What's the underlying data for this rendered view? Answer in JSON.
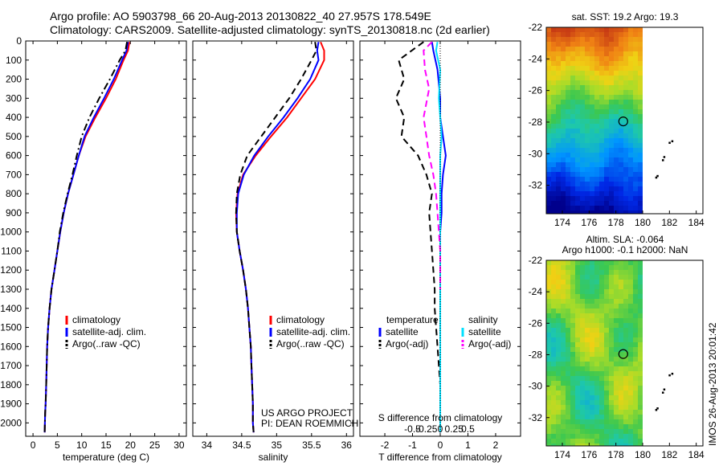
{
  "header": {
    "line1": "Argo profile: AO 5903798_66 20-Aug-2013 20130822_40 27.957S 178.549E",
    "line2": "Climatology: CARS2009. Satellite-adjusted climatology: synTS_20130818.nc (2d earlier)"
  },
  "colors": {
    "climatology": "#ff0000",
    "satellite": "#0000ff",
    "argo": "#000000",
    "salinity_satellite": "#00e0ff",
    "salinity_argo": "#ff00ff"
  },
  "stamp": "IMOS 26-Aug-2013 20:01:42",
  "chart_data": [
    {
      "id": "temperature",
      "type": "line",
      "xlabel": "temperature (deg C)",
      "ylabel": "",
      "xlim": [
        -1.5,
        31.5
      ],
      "ylim": [
        2070,
        0
      ],
      "xticks": [
        0,
        5,
        10,
        15,
        20,
        25,
        30
      ],
      "xtick_labels": [
        "0",
        "5",
        "10",
        "15",
        "20",
        "25",
        "30"
      ],
      "yticks": [
        0,
        100,
        200,
        300,
        400,
        500,
        600,
        700,
        800,
        900,
        1000,
        1100,
        1200,
        1300,
        1400,
        1500,
        1600,
        1700,
        1800,
        1900,
        2000
      ],
      "ytick_labels": [
        "0",
        "100",
        "200",
        "300",
        "400",
        "500",
        "600",
        "700",
        "800",
        "900",
        "1000",
        "1100",
        "1200",
        "1300",
        "1400",
        "1500",
        "1600",
        "1700",
        "1800",
        "1900",
        "2000"
      ],
      "legend": [
        "climatology",
        "satellite-adj. clim.",
        "Argo(..raw -QC)"
      ],
      "series": [
        {
          "name": "climatology",
          "style": "solid",
          "color": "#ff0000",
          "x": [
            19.8,
            19.5,
            18.6,
            17.0,
            15.0,
            12.8,
            10.8,
            9.4,
            8.3,
            7.2,
            6.3,
            5.6,
            5.0,
            4.4,
            3.8,
            3.4,
            3.1,
            2.9,
            2.8,
            2.7,
            2.6,
            2.5,
            2.45,
            2.4
          ],
          "y": [
            5,
            50,
            100,
            200,
            300,
            400,
            500,
            600,
            700,
            800,
            900,
            1000,
            1100,
            1200,
            1300,
            1400,
            1500,
            1600,
            1700,
            1800,
            1900,
            1950,
            2000,
            2050
          ]
        },
        {
          "name": "satellite-adj. clim.",
          "style": "solid",
          "color": "#0000ff",
          "x": [
            19.5,
            19.2,
            18.3,
            16.6,
            14.6,
            12.5,
            10.6,
            9.4,
            8.3,
            7.2,
            6.3,
            5.6,
            5.0,
            4.4,
            3.8,
            3.4,
            3.1,
            2.9,
            2.8,
            2.7,
            2.6,
            2.5,
            2.45,
            2.4
          ],
          "y": [
            5,
            50,
            100,
            200,
            300,
            400,
            500,
            600,
            700,
            800,
            900,
            1000,
            1100,
            1200,
            1300,
            1400,
            1500,
            1600,
            1700,
            1800,
            1900,
            1950,
            2000,
            2050
          ]
        },
        {
          "name": "Argo(..raw -QC)",
          "style": "dashdot",
          "color": "#000000",
          "x": [
            19.3,
            19.0,
            17.8,
            15.8,
            13.6,
            11.6,
            10.0,
            9.0,
            8.1,
            7.1,
            6.2,
            5.5,
            5.0,
            4.4,
            3.8,
            3.4,
            3.1,
            2.9,
            2.8,
            2.7,
            2.6,
            2.5,
            2.45,
            2.4
          ],
          "y": [
            5,
            50,
            100,
            200,
            300,
            400,
            500,
            600,
            700,
            800,
            900,
            1000,
            1100,
            1200,
            1300,
            1400,
            1500,
            1600,
            1700,
            1800,
            1900,
            1950,
            2000,
            2050
          ]
        }
      ]
    },
    {
      "id": "salinity",
      "type": "line",
      "xlabel": "salinity",
      "ylabel": "",
      "xlim": [
        33.8,
        36.1
      ],
      "ylim": [
        2070,
        0
      ],
      "xticks": [
        34,
        34.5,
        35,
        35.5,
        36
      ],
      "xtick_labels": [
        "34",
        "34.5",
        "35",
        "35.5",
        "36"
      ],
      "legend": [
        "climatology",
        "satellite-adj. clim.",
        "Argo(..raw -QC)"
      ],
      "annotation": [
        "US ARGO PROJECT",
        "PI: DEAN ROEMMICH"
      ],
      "series": [
        {
          "name": "climatology",
          "style": "solid",
          "color": "#ff0000",
          "x": [
            35.63,
            35.68,
            35.68,
            35.55,
            35.35,
            35.15,
            34.92,
            34.7,
            34.52,
            34.44,
            34.42,
            34.43,
            34.47,
            34.52,
            34.56,
            34.59,
            34.61,
            34.63,
            34.64,
            34.65,
            34.66,
            34.66,
            34.67
          ],
          "y": [
            5,
            50,
            100,
            200,
            300,
            400,
            500,
            600,
            700,
            800,
            900,
            1000,
            1100,
            1200,
            1300,
            1400,
            1500,
            1600,
            1700,
            1800,
            1900,
            2000,
            2050
          ]
        },
        {
          "name": "satellite-adj. clim.",
          "style": "solid",
          "color": "#0000ff",
          "x": [
            35.6,
            35.58,
            35.6,
            35.48,
            35.3,
            35.1,
            34.88,
            34.68,
            34.53,
            34.45,
            34.43,
            34.43,
            34.47,
            34.52,
            34.56,
            34.59,
            34.61,
            34.63,
            34.64,
            34.65,
            34.66,
            34.66,
            34.67
          ],
          "y": [
            5,
            50,
            100,
            200,
            300,
            400,
            500,
            600,
            700,
            800,
            900,
            1000,
            1100,
            1200,
            1300,
            1400,
            1500,
            1600,
            1700,
            1800,
            1900,
            2000,
            2050
          ]
        },
        {
          "name": "Argo(..raw -QC)",
          "style": "dashed",
          "color": "#000000",
          "x": [
            35.55,
            35.57,
            35.5,
            35.35,
            35.18,
            34.98,
            34.78,
            34.58,
            34.48,
            34.43,
            34.42,
            34.43,
            34.47,
            34.52,
            34.56,
            34.59,
            34.61,
            34.63,
            34.64,
            34.65,
            34.66,
            34.66,
            34.67
          ],
          "y": [
            5,
            50,
            100,
            200,
            300,
            400,
            500,
            600,
            700,
            800,
            900,
            1000,
            1100,
            1200,
            1300,
            1400,
            1500,
            1600,
            1700,
            1800,
            1900,
            2000,
            2050
          ]
        }
      ]
    },
    {
      "id": "difference",
      "type": "line",
      "xlabel": "T difference from climatology",
      "xlabel_top": "S difference from climatology",
      "xlim": [
        -2.9,
        2.9
      ],
      "ylim": [
        2070,
        0
      ],
      "xticks": [
        -2,
        -1,
        0,
        1,
        2
      ],
      "xtick_labels": [
        "-2",
        "-1",
        "0",
        "1",
        "2"
      ],
      "sticks": [
        -1.0,
        -0.5,
        0,
        0.5,
        1.0
      ],
      "stick_labels": [
        "-0.5",
        "-0.25",
        "0",
        "0.25",
        "0.5"
      ],
      "legend_left_title": "temperature",
      "legend_right_title": "salinity",
      "legend": [
        "satellite",
        "Argo(-adj)",
        "satellite",
        "Argo(-adj)"
      ],
      "series": [
        {
          "name": "satellite",
          "group": "temperature",
          "style": "solid",
          "color": "#0000ff",
          "x": [
            -0.3,
            -0.25,
            -0.1,
            0.0,
            0.0,
            0.1,
            0.2,
            0.1,
            0.05,
            0.05,
            0.0,
            0.0,
            0.0,
            0.0,
            0.0,
            0.0,
            0.0,
            0.0,
            0.0,
            0.0
          ],
          "y": [
            5,
            50,
            150,
            300,
            400,
            500,
            600,
            700,
            800,
            900,
            1000,
            1100,
            1200,
            1300,
            1400,
            1600,
            1700,
            1800,
            1900,
            2050
          ]
        },
        {
          "name": "Argo(-adj)",
          "group": "temperature",
          "style": "dashed",
          "color": "#000000",
          "x": [
            -0.6,
            -1.5,
            -1.3,
            -1.6,
            -1.3,
            -1.4,
            -0.8,
            -0.5,
            -0.3,
            -0.4,
            -0.35,
            -0.3,
            -0.25,
            -0.2,
            -0.2,
            -0.1,
            -0.05,
            0.0,
            0.0,
            0.0
          ],
          "y": [
            5,
            100,
            200,
            300,
            400,
            500,
            600,
            700,
            800,
            900,
            1000,
            1100,
            1200,
            1300,
            1400,
            1600,
            1700,
            1800,
            1900,
            2050
          ]
        },
        {
          "name": "satellite",
          "group": "salinity",
          "style": "solid",
          "color": "#00e0ff",
          "x": [
            -0.1,
            -0.15,
            0.0,
            -0.05,
            0.0,
            0.05,
            0.0,
            0.0,
            0.0,
            0.0,
            0.0,
            0.0,
            0.0,
            0.0,
            0.0,
            0.0,
            0.0
          ],
          "y": [
            5,
            50,
            150,
            300,
            400,
            500,
            600,
            700,
            800,
            900,
            1000,
            1200,
            1400,
            1600,
            1800,
            1900,
            2050
          ]
        },
        {
          "name": "Argo(-adj)",
          "group": "salinity",
          "style": "dashed",
          "color": "#ff00ff",
          "x": [
            -0.3,
            -0.6,
            -0.55,
            -0.4,
            -0.6,
            -0.5,
            -0.4,
            -0.25,
            -0.15,
            -0.1,
            -0.05,
            0.0,
            0.0,
            0.0
          ],
          "y": [
            5,
            50,
            150,
            250,
            400,
            500,
            600,
            700,
            800,
            900,
            1000,
            1100,
            1200,
            1300
          ]
        }
      ]
    },
    {
      "id": "sst_map",
      "type": "heatmap",
      "title": "sat. SST: 19.2 Argo: 19.3",
      "xlim": [
        172.8,
        184.5
      ],
      "ylim": [
        -33.8,
        -22
      ],
      "data_xlim": [
        173,
        180
      ],
      "xticks": [
        174,
        176,
        178,
        180,
        182,
        184
      ],
      "yticks": [
        -22,
        -24,
        -26,
        -28,
        -30,
        -32
      ],
      "ytick_labels": [
        "-22",
        "-24",
        "-26",
        "-28",
        "-30",
        "-32"
      ],
      "float_position": [
        178.549,
        -27.957
      ],
      "islands": [
        [
          182.2,
          -29.2
        ],
        [
          182.0,
          -29.3
        ],
        [
          181.6,
          -30.2
        ],
        [
          181.5,
          -30.4
        ],
        [
          181.1,
          -31.4
        ],
        [
          181.0,
          -31.5
        ]
      ]
    },
    {
      "id": "sla_map",
      "type": "heatmap",
      "title": "Altim. SLA: -0.064",
      "title2": "Argo h1000: -0.1 h2000: NaN",
      "xlim": [
        172.8,
        184.5
      ],
      "ylim": [
        -33.8,
        -22
      ],
      "data_xlim": [
        173,
        180
      ],
      "xticks": [
        174,
        176,
        178,
        180,
        182,
        184
      ],
      "yticks": [
        -22,
        -24,
        -26,
        -28,
        -30,
        -32
      ],
      "ytick_labels": [
        "-22",
        "-24",
        "-26",
        "-28",
        "-30",
        "-32"
      ],
      "float_position": [
        178.549,
        -27.957
      ],
      "islands": [
        [
          182.2,
          -29.2
        ],
        [
          182.0,
          -29.3
        ],
        [
          181.6,
          -30.2
        ],
        [
          181.5,
          -30.4
        ],
        [
          181.1,
          -31.4
        ],
        [
          181.0,
          -31.5
        ]
      ]
    }
  ]
}
